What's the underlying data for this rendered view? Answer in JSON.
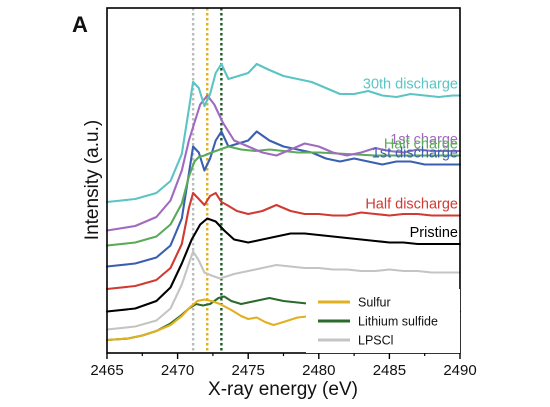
{
  "chart_data": {
    "type": "line",
    "panel_label": "A",
    "xlabel": "X-ray energy (eV)",
    "ylabel": "Intensity (a.u.)",
    "xlim": [
      2465,
      2490
    ],
    "x_ticks": [
      2465,
      2470,
      2475,
      2480,
      2485,
      2490
    ],
    "y_ticks": [],
    "grid": false,
    "legend_position": "bottom-right",
    "reference_lines": [
      {
        "x": 2471.1,
        "color": "#bbbbbb",
        "style": "dotted"
      },
      {
        "x": 2472.1,
        "color": "#e0b020",
        "style": "dotted"
      },
      {
        "x": 2473.1,
        "color": "#1f5a2a",
        "style": "dotted"
      }
    ],
    "series": [
      {
        "label": "30th discharge",
        "color": "#5bc4c4",
        "offset": 0.92,
        "labeled": true,
        "points": [
          [
            2465,
            0.0
          ],
          [
            2467,
            0.02
          ],
          [
            2468.5,
            0.06
          ],
          [
            2469.5,
            0.14
          ],
          [
            2470.3,
            0.32
          ],
          [
            2470.8,
            0.62
          ],
          [
            2471.1,
            0.8
          ],
          [
            2471.5,
            0.76
          ],
          [
            2471.9,
            0.64
          ],
          [
            2472.3,
            0.72
          ],
          [
            2472.7,
            0.86
          ],
          [
            2473.1,
            0.92
          ],
          [
            2473.6,
            0.82
          ],
          [
            2474.3,
            0.84
          ],
          [
            2475.0,
            0.86
          ],
          [
            2475.6,
            0.92
          ],
          [
            2476.5,
            0.88
          ],
          [
            2477.5,
            0.84
          ],
          [
            2478.5,
            0.82
          ],
          [
            2479.5,
            0.8
          ],
          [
            2480.5,
            0.76
          ],
          [
            2481.5,
            0.72
          ],
          [
            2482.5,
            0.72
          ],
          [
            2483.5,
            0.74
          ],
          [
            2484.5,
            0.71
          ],
          [
            2485.5,
            0.7
          ],
          [
            2486.5,
            0.72
          ],
          [
            2487.5,
            0.71
          ],
          [
            2488.5,
            0.7
          ],
          [
            2489.5,
            0.71
          ],
          [
            2490,
            0.71
          ]
        ]
      },
      {
        "label": "1st charge",
        "color": "#a06ac0",
        "offset": 0.73,
        "labeled": true,
        "points": [
          [
            2465,
            0.0
          ],
          [
            2467,
            0.03
          ],
          [
            2468.5,
            0.09
          ],
          [
            2469.5,
            0.2
          ],
          [
            2470.3,
            0.4
          ],
          [
            2470.8,
            0.6
          ],
          [
            2471.2,
            0.72
          ],
          [
            2471.6,
            0.84
          ],
          [
            2472.1,
            0.9
          ],
          [
            2472.6,
            0.84
          ],
          [
            2473.2,
            0.72
          ],
          [
            2474.0,
            0.6
          ],
          [
            2475.0,
            0.56
          ],
          [
            2476.0,
            0.52
          ],
          [
            2477.0,
            0.5
          ],
          [
            2478.0,
            0.54
          ],
          [
            2479.0,
            0.58
          ],
          [
            2480.0,
            0.56
          ],
          [
            2481.0,
            0.52
          ],
          [
            2482.0,
            0.5
          ],
          [
            2483.0,
            0.52
          ],
          [
            2484.0,
            0.55
          ],
          [
            2485.0,
            0.53
          ],
          [
            2486.0,
            0.52
          ],
          [
            2487.0,
            0.54
          ],
          [
            2488.0,
            0.53
          ],
          [
            2489.0,
            0.53
          ],
          [
            2490,
            0.53
          ]
        ]
      },
      {
        "label": "Half charge",
        "color": "#5aaa5a",
        "offset": 0.63,
        "labeled": true,
        "points": [
          [
            2465,
            0.0
          ],
          [
            2467,
            0.02
          ],
          [
            2468.5,
            0.06
          ],
          [
            2469.5,
            0.14
          ],
          [
            2470.3,
            0.28
          ],
          [
            2470.8,
            0.46
          ],
          [
            2471.2,
            0.56
          ],
          [
            2471.5,
            0.59
          ],
          [
            2471.9,
            0.6
          ],
          [
            2472.4,
            0.62
          ],
          [
            2473.0,
            0.64
          ],
          [
            2473.6,
            0.66
          ],
          [
            2474.5,
            0.64
          ],
          [
            2475.5,
            0.63
          ],
          [
            2476.5,
            0.64
          ],
          [
            2477.5,
            0.63
          ],
          [
            2478.5,
            0.62
          ],
          [
            2480.0,
            0.62
          ],
          [
            2482.0,
            0.61
          ],
          [
            2484.0,
            0.6
          ],
          [
            2486.0,
            0.6
          ],
          [
            2488.0,
            0.6
          ],
          [
            2490,
            0.6
          ]
        ]
      },
      {
        "label": "1st discharge",
        "color": "#3a5fb0",
        "offset": 0.49,
        "labeled": true,
        "points": [
          [
            2465,
            0.0
          ],
          [
            2467,
            0.02
          ],
          [
            2468.5,
            0.06
          ],
          [
            2469.5,
            0.14
          ],
          [
            2470.3,
            0.32
          ],
          [
            2470.8,
            0.62
          ],
          [
            2471.1,
            0.8
          ],
          [
            2471.5,
            0.76
          ],
          [
            2471.9,
            0.64
          ],
          [
            2472.3,
            0.72
          ],
          [
            2472.7,
            0.84
          ],
          [
            2473.1,
            0.9
          ],
          [
            2473.6,
            0.8
          ],
          [
            2474.3,
            0.82
          ],
          [
            2475.0,
            0.84
          ],
          [
            2475.6,
            0.9
          ],
          [
            2476.5,
            0.84
          ],
          [
            2477.5,
            0.8
          ],
          [
            2478.5,
            0.78
          ],
          [
            2479.5,
            0.76
          ],
          [
            2480.5,
            0.72
          ],
          [
            2481.5,
            0.7
          ],
          [
            2482.5,
            0.72
          ],
          [
            2483.5,
            0.7
          ],
          [
            2484.5,
            0.68
          ],
          [
            2485.5,
            0.7
          ],
          [
            2486.5,
            0.7
          ],
          [
            2487.5,
            0.68
          ],
          [
            2488.5,
            0.68
          ],
          [
            2489.5,
            0.68
          ],
          [
            2490,
            0.68
          ]
        ]
      },
      {
        "label": "Half discharge",
        "color": "#d03a32",
        "offset": 0.34,
        "labeled": true,
        "points": [
          [
            2465,
            0.0
          ],
          [
            2467,
            0.02
          ],
          [
            2468.5,
            0.06
          ],
          [
            2469.5,
            0.14
          ],
          [
            2470.3,
            0.3
          ],
          [
            2470.8,
            0.54
          ],
          [
            2471.1,
            0.64
          ],
          [
            2471.5,
            0.6
          ],
          [
            2471.9,
            0.56
          ],
          [
            2472.3,
            0.62
          ],
          [
            2472.7,
            0.64
          ],
          [
            2473.1,
            0.58
          ],
          [
            2473.5,
            0.56
          ],
          [
            2474.2,
            0.52
          ],
          [
            2475.0,
            0.5
          ],
          [
            2476.0,
            0.52
          ],
          [
            2477.0,
            0.56
          ],
          [
            2478.0,
            0.52
          ],
          [
            2479.0,
            0.5
          ],
          [
            2480.0,
            0.5
          ],
          [
            2481.0,
            0.49
          ],
          [
            2482.0,
            0.49
          ],
          [
            2483.0,
            0.51
          ],
          [
            2484.0,
            0.5
          ],
          [
            2485.0,
            0.49
          ],
          [
            2486.0,
            0.5
          ],
          [
            2487.0,
            0.5
          ],
          [
            2488.0,
            0.49
          ],
          [
            2489.0,
            0.49
          ],
          [
            2490,
            0.49
          ]
        ]
      },
      {
        "label": "Pristine",
        "color": "#000000",
        "offset": 0.19,
        "labeled": true,
        "points": [
          [
            2465,
            0.0
          ],
          [
            2467,
            0.02
          ],
          [
            2468.5,
            0.07
          ],
          [
            2469.5,
            0.16
          ],
          [
            2470.3,
            0.32
          ],
          [
            2471.0,
            0.48
          ],
          [
            2471.6,
            0.58
          ],
          [
            2472.1,
            0.62
          ],
          [
            2472.7,
            0.6
          ],
          [
            2473.3,
            0.54
          ],
          [
            2474.0,
            0.48
          ],
          [
            2475.0,
            0.46
          ],
          [
            2476.0,
            0.48
          ],
          [
            2477.0,
            0.5
          ],
          [
            2478.0,
            0.52
          ],
          [
            2479.0,
            0.52
          ],
          [
            2480.0,
            0.51
          ],
          [
            2481.0,
            0.5
          ],
          [
            2482.0,
            0.49
          ],
          [
            2483.0,
            0.48
          ],
          [
            2484.0,
            0.47
          ],
          [
            2485.0,
            0.46
          ],
          [
            2486.0,
            0.46
          ],
          [
            2487.0,
            0.45
          ],
          [
            2488.0,
            0.45
          ],
          [
            2489.0,
            0.45
          ],
          [
            2490,
            0.45
          ]
        ]
      },
      {
        "label": "LPSCl",
        "color": "#c4c4c4",
        "offset": 0.07,
        "labeled": false,
        "points": [
          [
            2465,
            0.0
          ],
          [
            2467,
            0.02
          ],
          [
            2468.5,
            0.06
          ],
          [
            2469.5,
            0.14
          ],
          [
            2470.3,
            0.3
          ],
          [
            2470.8,
            0.44
          ],
          [
            2471.1,
            0.52
          ],
          [
            2471.5,
            0.46
          ],
          [
            2471.9,
            0.38
          ],
          [
            2472.4,
            0.36
          ],
          [
            2473.0,
            0.34
          ],
          [
            2474.0,
            0.37
          ],
          [
            2475.0,
            0.39
          ],
          [
            2476.0,
            0.41
          ],
          [
            2477.0,
            0.43
          ],
          [
            2478.0,
            0.42
          ],
          [
            2479.0,
            0.41
          ],
          [
            2480.0,
            0.41
          ],
          [
            2481.0,
            0.4
          ],
          [
            2482.0,
            0.4
          ],
          [
            2483.0,
            0.39
          ],
          [
            2484.0,
            0.39
          ],
          [
            2485.0,
            0.4
          ],
          [
            2486.0,
            0.39
          ],
          [
            2487.0,
            0.39
          ],
          [
            2488.0,
            0.38
          ],
          [
            2489.0,
            0.38
          ],
          [
            2490,
            0.38
          ]
        ]
      },
      {
        "label": "Sulfur",
        "color": "#e0b020",
        "offset": 0.0,
        "labeled": false,
        "points": [
          [
            2465,
            0.0
          ],
          [
            2466.5,
            0.01
          ],
          [
            2467.5,
            0.03
          ],
          [
            2468.5,
            0.06
          ],
          [
            2469.5,
            0.1
          ],
          [
            2470.3,
            0.16
          ],
          [
            2470.9,
            0.22
          ],
          [
            2471.4,
            0.26
          ],
          [
            2471.9,
            0.27
          ],
          [
            2472.4,
            0.26
          ],
          [
            2473.0,
            0.24
          ],
          [
            2473.8,
            0.2
          ],
          [
            2474.5,
            0.16
          ],
          [
            2475.0,
            0.14
          ],
          [
            2475.6,
            0.15
          ],
          [
            2476.2,
            0.12
          ],
          [
            2476.8,
            0.1
          ],
          [
            2477.5,
            0.12
          ],
          [
            2478.5,
            0.15
          ],
          [
            2479.5,
            0.16
          ],
          [
            2480.5,
            0.16
          ],
          [
            2481.5,
            0.15
          ],
          [
            2482.5,
            0.15
          ],
          [
            2483.5,
            0.15
          ],
          [
            2484.5,
            0.15
          ],
          [
            2485.5,
            0.15
          ],
          [
            2486.5,
            0.15
          ],
          [
            2487.5,
            0.15
          ],
          [
            2488.5,
            0.15
          ],
          [
            2489.5,
            0.15
          ],
          [
            2490,
            0.15
          ]
        ]
      },
      {
        "label": "Lithium sulfide",
        "color": "#2a6a2a",
        "offset": 0.0,
        "labeled": false,
        "points": [
          [
            2465,
            0.0
          ],
          [
            2466.5,
            0.01
          ],
          [
            2467.5,
            0.03
          ],
          [
            2468.5,
            0.06
          ],
          [
            2469.5,
            0.11
          ],
          [
            2470.2,
            0.16
          ],
          [
            2470.8,
            0.21
          ],
          [
            2471.3,
            0.24
          ],
          [
            2471.8,
            0.23
          ],
          [
            2472.3,
            0.24
          ],
          [
            2472.9,
            0.28
          ],
          [
            2473.3,
            0.29
          ],
          [
            2473.8,
            0.26
          ],
          [
            2474.5,
            0.24
          ],
          [
            2475.5,
            0.26
          ],
          [
            2476.5,
            0.28
          ],
          [
            2477.5,
            0.26
          ],
          [
            2478.5,
            0.25
          ],
          [
            2479.5,
            0.24
          ],
          [
            2480.5,
            0.21
          ],
          [
            2481.5,
            0.21
          ],
          [
            2482.5,
            0.22
          ],
          [
            2483.5,
            0.2
          ],
          [
            2484.5,
            0.2
          ],
          [
            2485.5,
            0.2
          ],
          [
            2486.5,
            0.19
          ],
          [
            2487.5,
            0.19
          ],
          [
            2488.5,
            0.19
          ],
          [
            2489.5,
            0.19
          ],
          [
            2490,
            0.19
          ]
        ]
      }
    ],
    "legend": [
      {
        "label": "Sulfur",
        "color": "#e0b020"
      },
      {
        "label": "Lithium sulfide",
        "color": "#2a6a2a"
      },
      {
        "label": "LPSCl",
        "color": "#c4c4c4"
      }
    ]
  }
}
